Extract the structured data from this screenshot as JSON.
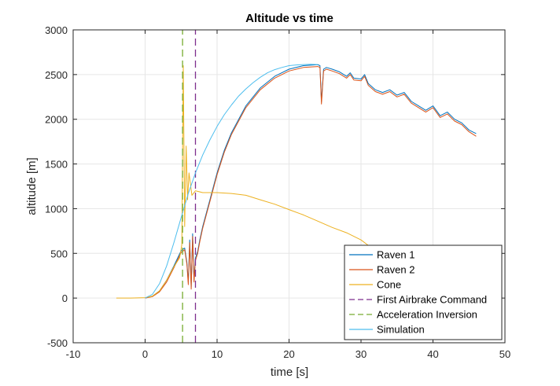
{
  "chart_data": {
    "type": "line",
    "title": "Altitude vs time",
    "xlabel": "time [s]",
    "ylabel": "altitude [m]",
    "xlim": [
      -10,
      50
    ],
    "ylim": [
      -500,
      3000
    ],
    "xticks": [
      -10,
      0,
      10,
      20,
      30,
      40,
      50
    ],
    "yticks": [
      -500,
      0,
      500,
      1000,
      1500,
      2000,
      2500,
      3000
    ],
    "grid": true,
    "legend_position": "bottom-right",
    "series": [
      {
        "name": "Raven 1",
        "color": "#0072BD",
        "style": "solid",
        "x": [
          0,
          1,
          2,
          3,
          4,
          5,
          5.5,
          5.8,
          6.0,
          6.2,
          6.4,
          6.6,
          6.8,
          7.0,
          7.3,
          7.6,
          8,
          9,
          10,
          11,
          12,
          14,
          16,
          18,
          20,
          22,
          24,
          24.3,
          24.5,
          24.8,
          25.2,
          26,
          27,
          28,
          28.5,
          29,
          30,
          30.5,
          31,
          32,
          33,
          34,
          35,
          36,
          37,
          38,
          39,
          40,
          41,
          42,
          43,
          44,
          45,
          46
        ],
        "y": [
          0,
          20,
          80,
          200,
          360,
          530,
          560,
          400,
          180,
          650,
          120,
          720,
          200,
          450,
          520,
          650,
          800,
          1100,
          1400,
          1650,
          1850,
          2150,
          2350,
          2480,
          2560,
          2600,
          2610,
          2600,
          2200,
          2560,
          2580,
          2560,
          2530,
          2480,
          2520,
          2460,
          2450,
          2500,
          2400,
          2330,
          2300,
          2330,
          2270,
          2300,
          2200,
          2150,
          2100,
          2150,
          2040,
          2080,
          2000,
          1960,
          1880,
          1840
        ]
      },
      {
        "name": "Raven 2",
        "color": "#D95319",
        "style": "solid",
        "x": [
          0,
          1,
          2,
          3,
          4,
          5,
          5.5,
          5.8,
          6.0,
          6.2,
          6.4,
          6.6,
          6.8,
          7.0,
          7.3,
          7.6,
          8,
          9,
          10,
          11,
          12,
          14,
          16,
          18,
          20,
          22,
          24,
          24.3,
          24.5,
          24.8,
          25.2,
          26,
          27,
          28,
          28.5,
          29,
          30,
          30.5,
          31,
          32,
          33,
          34,
          35,
          36,
          37,
          38,
          39,
          40,
          41,
          42,
          43,
          44,
          45,
          46
        ],
        "y": [
          0,
          15,
          70,
          180,
          340,
          510,
          540,
          380,
          150,
          620,
          100,
          690,
          180,
          420,
          500,
          630,
          780,
          1080,
          1380,
          1630,
          1830,
          2130,
          2330,
          2460,
          2540,
          2580,
          2590,
          2580,
          2170,
          2540,
          2560,
          2540,
          2510,
          2460,
          2500,
          2440,
          2430,
          2480,
          2380,
          2310,
          2280,
          2310,
          2250,
          2280,
          2180,
          2130,
          2080,
          2130,
          2020,
          2060,
          1980,
          1940,
          1860,
          1810
        ]
      },
      {
        "name": "Cone",
        "color": "#EDB120",
        "style": "solid",
        "x": [
          -4,
          -2,
          0,
          1,
          2,
          3,
          4,
          4.8,
          5.1,
          5.3,
          5.5,
          5.7,
          5.9,
          6.1,
          6.5,
          7,
          8,
          10,
          12,
          14,
          16,
          18,
          20,
          22,
          24,
          26,
          28,
          30,
          31,
          32.5
        ],
        "y": [
          0,
          0,
          5,
          20,
          80,
          200,
          350,
          450,
          600,
          2600,
          800,
          1700,
          1100,
          1400,
          1150,
          1200,
          1180,
          1180,
          1170,
          1150,
          1100,
          1050,
          990,
          930,
          860,
          790,
          730,
          650,
          590,
          560
        ]
      },
      {
        "name": "First Airbrake Command",
        "color": "#7E2F8E",
        "style": "dashed",
        "x": [
          7,
          7
        ],
        "y": [
          -500,
          3000
        ]
      },
      {
        "name": "Acceleration Inversion",
        "color": "#77AC30",
        "style": "dashed",
        "x": [
          5.2,
          5.2
        ],
        "y": [
          -500,
          3000
        ]
      },
      {
        "name": "Simulation",
        "color": "#4DBEEE",
        "style": "solid",
        "x": [
          0,
          1,
          2,
          3,
          4,
          5,
          6,
          7,
          8,
          9,
          10,
          11,
          12,
          13,
          14,
          15,
          16,
          17,
          18,
          19,
          20,
          21,
          22,
          23,
          24
        ],
        "y": [
          0,
          40,
          160,
          360,
          620,
          900,
          1170,
          1400,
          1600,
          1770,
          1920,
          2050,
          2160,
          2260,
          2340,
          2410,
          2470,
          2520,
          2555,
          2580,
          2600,
          2608,
          2612,
          2615,
          2612
        ]
      }
    ]
  }
}
